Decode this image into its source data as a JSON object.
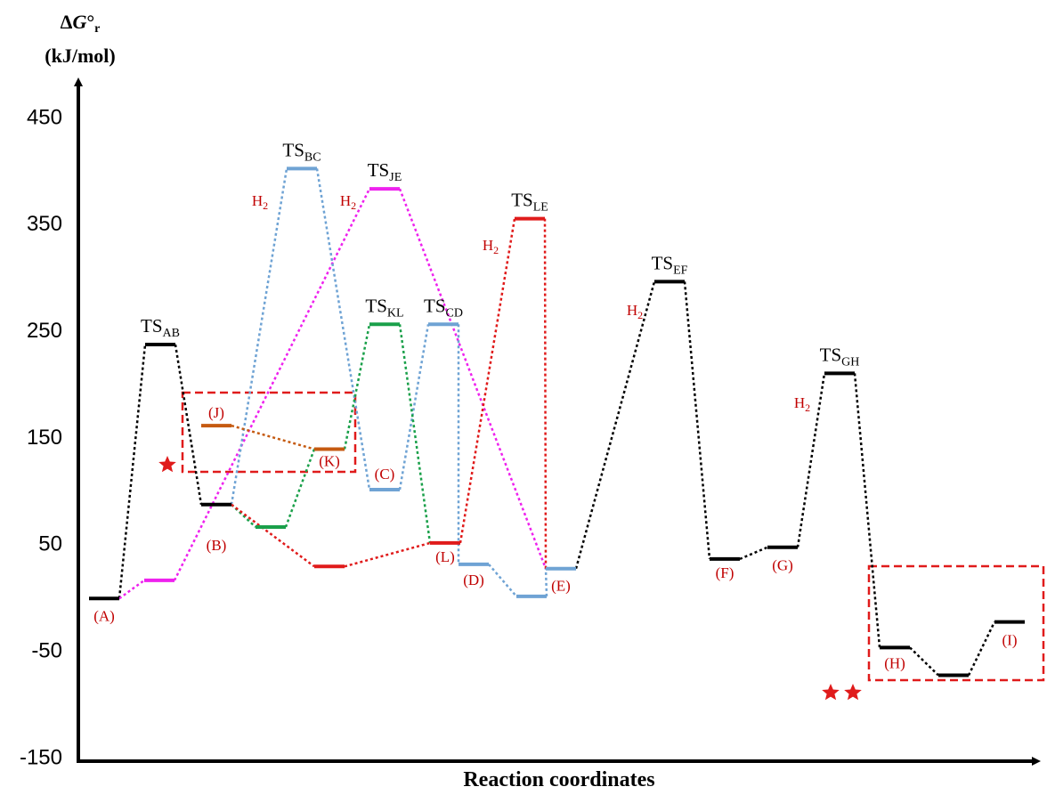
{
  "chart_data": {
    "type": "energy_diagram",
    "y_label": {
      "delta": "Δ",
      "symbol": "G",
      "degree": "°",
      "sub": "r",
      "units": "(kJ/mol)"
    },
    "x_label": "Reaction coordinates",
    "ylim": [
      -150,
      450
    ],
    "yticks": [
      450,
      350,
      250,
      150,
      50,
      -50,
      -150
    ],
    "levels": [
      {
        "label": "(A)",
        "value": 0,
        "color": "#000000"
      },
      {
        "label": "TS",
        "sub": "AB",
        "value": 238,
        "color": "#000000"
      },
      {
        "label": "(B)",
        "value": 88,
        "color": "#000000"
      },
      {
        "value": 17,
        "color": "#ee22ee"
      },
      {
        "label": "TS",
        "sub": "BC",
        "value": 403,
        "color": "#6fa3d4"
      },
      {
        "label": "TS",
        "sub": "JE",
        "value": 384,
        "color": "#ee22ee"
      },
      {
        "label": "(J)",
        "value": 162,
        "color": "#c55a11"
      },
      {
        "label": "(K)",
        "value": 140,
        "color": "#c55a11"
      },
      {
        "value": 67,
        "color": "#1aa04a"
      },
      {
        "label": "TS",
        "sub": "KL",
        "value": 257,
        "color": "#1aa04a"
      },
      {
        "label": "(C)",
        "value": 102,
        "color": "#6fa3d4"
      },
      {
        "label": "TS",
        "sub": "CD",
        "value": 257,
        "color": "#6fa3d4"
      },
      {
        "label": "(L)",
        "value": 52,
        "color": "#e01b1b"
      },
      {
        "value": 30,
        "color": "#e01b1b"
      },
      {
        "label": "TS",
        "sub": "LE",
        "value": 356,
        "color": "#e01b1b"
      },
      {
        "label": "(D)",
        "value": 32,
        "color": "#6fa3d4"
      },
      {
        "value": 2,
        "color": "#6fa3d4"
      },
      {
        "label": "(E)",
        "value": 28,
        "color": "#6fa3d4"
      },
      {
        "label": "TS",
        "sub": "EF",
        "value": 297,
        "color": "#000000"
      },
      {
        "label": "(F)",
        "value": 37,
        "color": "#000000"
      },
      {
        "label": "(G)",
        "value": 48,
        "color": "#000000"
      },
      {
        "label": "TS",
        "sub": "GH",
        "value": 211,
        "color": "#000000"
      },
      {
        "label": "(H)",
        "value": -46,
        "color": "#000000"
      },
      {
        "value": -72,
        "color": "#000000"
      },
      {
        "label": "(I)",
        "value": -22,
        "color": "#000000"
      }
    ],
    "links": [
      {
        "from": 0,
        "to": 1,
        "color": "#000000"
      },
      {
        "from": 1,
        "to": 2,
        "color": "#000000"
      },
      {
        "from": 0,
        "to": 3,
        "color": "#ee22ee"
      },
      {
        "from": 3,
        "to": 5,
        "color": "#ee22ee"
      },
      {
        "from": 5,
        "to": 17,
        "color": "#ee22ee"
      },
      {
        "from": 2,
        "to": 4,
        "color": "#6fa3d4"
      },
      {
        "from": 4,
        "to": 10,
        "color": "#6fa3d4"
      },
      {
        "from": 10,
        "to": 11,
        "color": "#6fa3d4"
      },
      {
        "from": 11,
        "to": 15,
        "color": "#6fa3d4"
      },
      {
        "from": 15,
        "to": 16,
        "color": "#6fa3d4"
      },
      {
        "from": 16,
        "to": 17,
        "color": "#6fa3d4"
      },
      {
        "from": 6,
        "to": 7,
        "color": "#c55a11"
      },
      {
        "from": 2,
        "to": 8,
        "color": "#1aa04a"
      },
      {
        "from": 8,
        "to": 7,
        "color": "#1aa04a"
      },
      {
        "from": 7,
        "to": 9,
        "color": "#1aa04a"
      },
      {
        "from": 9,
        "to": 12,
        "color": "#1aa04a"
      },
      {
        "from": 2,
        "to": 13,
        "color": "#e01b1b"
      },
      {
        "from": 13,
        "to": 12,
        "color": "#e01b1b"
      },
      {
        "from": 12,
        "to": 14,
        "color": "#e01b1b"
      },
      {
        "from": 14,
        "to": 17,
        "color": "#e01b1b"
      },
      {
        "from": 17,
        "to": 18,
        "color": "#000000"
      },
      {
        "from": 18,
        "to": 19,
        "color": "#000000"
      },
      {
        "from": 19,
        "to": 20,
        "color": "#000000"
      },
      {
        "from": 20,
        "to": 21,
        "color": "#000000"
      },
      {
        "from": 21,
        "to": 22,
        "color": "#000000"
      },
      {
        "from": 22,
        "to": 23,
        "color": "#000000"
      },
      {
        "from": 23,
        "to": 24,
        "color": "#000000"
      }
    ],
    "annotations": [
      {
        "main": "H",
        "sub": "2"
      },
      {
        "main": "H",
        "sub": "2"
      },
      {
        "main": "H",
        "sub": "2"
      },
      {
        "main": "H",
        "sub": "2"
      },
      {
        "main": "H",
        "sub": "2"
      }
    ]
  }
}
